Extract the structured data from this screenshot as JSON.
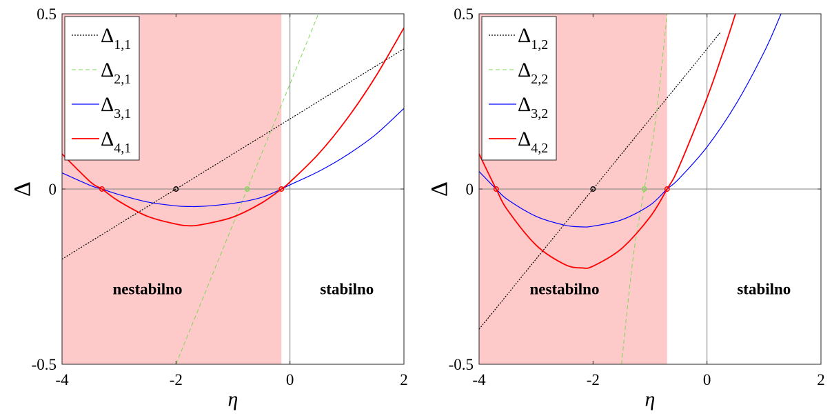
{
  "chart_data": [
    {
      "type": "line",
      "xlabel": "η",
      "ylabel": "Δ",
      "xlim": [
        -4,
        2
      ],
      "ylim": [
        -0.5,
        0.5
      ],
      "xticks": [
        "-4",
        "-2",
        "0",
        "2"
      ],
      "yticks": [
        "-0.5",
        "0",
        "0.5"
      ],
      "grid": false,
      "legend_position": "top-left",
      "unstable_region": {
        "x_from": -4,
        "x_to": -0.15,
        "color": "#fdc9c9"
      },
      "annotations": [
        {
          "text": "nestabilno",
          "x": -2.5,
          "y": -0.3
        },
        {
          "text": "stabilno",
          "x": 1.0,
          "y": -0.3
        }
      ],
      "series": [
        {
          "name": "Δ",
          "sub": "1,1",
          "color": "#000000",
          "dash": "2,2",
          "width": 1.2,
          "x": [
            -4,
            -2,
            0,
            2
          ],
          "y": [
            -0.2,
            0.0,
            0.2,
            0.4
          ]
        },
        {
          "name": "Δ",
          "sub": "2,1",
          "color": "#7ed957",
          "dash": "6,4",
          "width": 1.0,
          "x": [
            -2.0,
            -1.5,
            -1.0,
            -0.75,
            -0.5,
            0.0,
            0.5
          ],
          "y": [
            -0.5,
            -0.3,
            -0.1,
            0.0,
            0.1,
            0.3,
            0.5
          ]
        },
        {
          "name": "Δ",
          "sub": "3,1",
          "color": "#0000ff",
          "dash": "",
          "width": 1.2,
          "x": [
            -4,
            -3.5,
            -3.3,
            -3.0,
            -2.5,
            -2.0,
            -1.75,
            -1.5,
            -1.0,
            -0.5,
            -0.15,
            0.0,
            0.5,
            1.0,
            1.5,
            2.0
          ],
          "y": [
            0.046,
            0.01,
            0.0,
            -0.016,
            -0.037,
            -0.048,
            -0.05,
            -0.049,
            -0.041,
            -0.024,
            0.0,
            0.012,
            0.05,
            0.097,
            0.155,
            0.23
          ]
        },
        {
          "name": "Δ",
          "sub": "4,1",
          "color": "#ff0000",
          "dash": "",
          "width": 1.8,
          "x": [
            -4,
            -3.5,
            -3.3,
            -3.0,
            -2.5,
            -2.0,
            -1.75,
            -1.5,
            -1.0,
            -0.5,
            -0.15,
            0.0,
            0.5,
            1.0,
            1.5,
            2.0
          ],
          "y": [
            0.1,
            0.02,
            0.0,
            -0.035,
            -0.078,
            -0.1,
            -0.105,
            -0.1,
            -0.08,
            -0.04,
            0.0,
            0.02,
            0.1,
            0.2,
            0.32,
            0.46
          ]
        }
      ],
      "markers": [
        {
          "x": -3.3,
          "y": 0,
          "color": "#ff0000"
        },
        {
          "x": -2.0,
          "y": 0,
          "color": "#000000"
        },
        {
          "x": -0.75,
          "y": 0,
          "color": "#7ed957"
        },
        {
          "x": -0.15,
          "y": 0,
          "color": "#ff0000"
        }
      ]
    },
    {
      "type": "line",
      "xlabel": "η",
      "ylabel": "Δ",
      "xlim": [
        -4,
        2
      ],
      "ylim": [
        -0.5,
        0.5
      ],
      "xticks": [
        "-4",
        "-2",
        "0",
        "2"
      ],
      "yticks": [
        "-0.5",
        "0",
        "0.5"
      ],
      "grid": false,
      "legend_position": "top-left",
      "unstable_region": {
        "x_from": -4,
        "x_to": -0.7,
        "color": "#fdc9c9"
      },
      "annotations": [
        {
          "text": "nestabilno",
          "x": -2.5,
          "y": -0.3
        },
        {
          "text": "stabilno",
          "x": 1.0,
          "y": -0.3
        }
      ],
      "series": [
        {
          "name": "Δ",
          "sub": "1,2",
          "color": "#000000",
          "dash": "2,2",
          "width": 1.2,
          "x": [
            -4,
            -2,
            0,
            0.2
          ],
          "y": [
            -0.4,
            0.0,
            0.4,
            0.44
          ]
        },
        {
          "name": "Δ",
          "sub": "2,2",
          "color": "#7ed957",
          "dash": "6,4",
          "width": 1.0,
          "x": [
            -1.5,
            -1.3,
            -1.1,
            -0.9,
            -0.7
          ],
          "y": [
            -0.5,
            -0.2,
            0.0,
            0.2,
            0.5
          ]
        },
        {
          "name": "Δ",
          "sub": "3,2",
          "color": "#0000ff",
          "dash": "",
          "width": 1.2,
          "x": [
            -4,
            -3.7,
            -3.5,
            -3.0,
            -2.5,
            -2.2,
            -2.0,
            -1.5,
            -1.0,
            -0.7,
            -0.5,
            0.0,
            0.5,
            1.0,
            1.3
          ],
          "y": [
            0.05,
            0.0,
            -0.03,
            -0.078,
            -0.103,
            -0.108,
            -0.106,
            -0.088,
            -0.046,
            0.0,
            0.028,
            0.12,
            0.24,
            0.39,
            0.5
          ]
        },
        {
          "name": "Δ",
          "sub": "4,2",
          "color": "#ff0000",
          "dash": "",
          "width": 1.8,
          "x": [
            -4,
            -3.7,
            -3.5,
            -3.0,
            -2.5,
            -2.2,
            -2.0,
            -1.5,
            -1.0,
            -0.7,
            -0.5,
            0.0,
            0.3,
            0.5
          ],
          "y": [
            0.1,
            0.0,
            -0.06,
            -0.16,
            -0.215,
            -0.225,
            -0.22,
            -0.17,
            -0.08,
            0.0,
            0.06,
            0.26,
            0.4,
            0.5
          ]
        }
      ],
      "markers": [
        {
          "x": -3.7,
          "y": 0,
          "color": "#ff0000"
        },
        {
          "x": -2.0,
          "y": 0,
          "color": "#000000"
        },
        {
          "x": -1.1,
          "y": 0,
          "color": "#7ed957"
        },
        {
          "x": -0.7,
          "y": 0,
          "color": "#ff0000"
        }
      ]
    }
  ]
}
